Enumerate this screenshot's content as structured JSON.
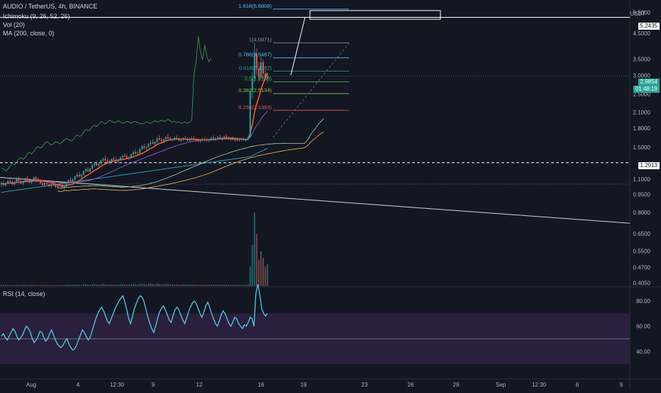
{
  "header": {
    "symbol_line": "AUDIO / TetherUS, 4h, BINANCE",
    "ichimoku_label": "Ichimoku (9, 26, 52, 26)",
    "vol_label": "Vol (20)",
    "ma_label": "MA (200, close, 0)",
    "currency": "USDT"
  },
  "price_axis": {
    "ticks": [
      "6",
      "5.5000",
      "4.5000",
      "3.5000",
      "3.0000",
      "2.5000",
      "2.1000",
      "1.8000",
      "1.5000",
      "1.1000",
      "0.9500",
      "0.8000",
      "0.6500",
      "0.5500",
      "0.4700",
      "0.4050"
    ],
    "target_price": "5.2435",
    "current_price": "2.9854",
    "countdown": "01:48:19",
    "support_price": "1.2913"
  },
  "rsi": {
    "label": "RSI (14, close)",
    "ticks": [
      "80.00",
      "60.00",
      "40.00"
    ],
    "upper_band": 70,
    "lower_band": 30,
    "midline": 50,
    "values": [
      52,
      54,
      51,
      49,
      52,
      55,
      58,
      56,
      52,
      49,
      51,
      53,
      57,
      60,
      58,
      55,
      50,
      47,
      49,
      52,
      56,
      55,
      51,
      48,
      50,
      54,
      57,
      53,
      49,
      46,
      44,
      43,
      45,
      48,
      50,
      46,
      43,
      41,
      42,
      45,
      49,
      53,
      57,
      55,
      52,
      49,
      51,
      56,
      61,
      66,
      70,
      73,
      75,
      72,
      68,
      64,
      62,
      66,
      70,
      74,
      77,
      80,
      82,
      84,
      79,
      73,
      66,
      62,
      68,
      74,
      78,
      82,
      84,
      83,
      79,
      73,
      67,
      62,
      58,
      55,
      60,
      66,
      71,
      74,
      76,
      73,
      69,
      65,
      63,
      68,
      73,
      75,
      73,
      69,
      65,
      62,
      66,
      71,
      75,
      78,
      80,
      78,
      74,
      70,
      67,
      71,
      76,
      79,
      75,
      70,
      66,
      62,
      60,
      64,
      69,
      72,
      70,
      66,
      62,
      60,
      63,
      67,
      66,
      62,
      60,
      58,
      61,
      60,
      63,
      67,
      66,
      60,
      86,
      93,
      85,
      74,
      70,
      68,
      70
    ]
  },
  "fib_levels": [
    {
      "label": "1.618(5.6808)",
      "color": "#4fc3f7"
    },
    {
      "label": "1(4.0971)",
      "color": "#9598a1"
    },
    {
      "label": "0.786(3.5487)",
      "color": "#4fc3f7"
    },
    {
      "label": "0.618(3.1182)",
      "color": "#26a69a"
    },
    {
      "label": "0.5(2.8158)",
      "color": "#4caf50"
    },
    {
      "label": "0.382(2.5134)",
      "color": "#8bc34a"
    },
    {
      "label": "0.236(2.1393)",
      "color": "#ef5350"
    }
  ],
  "time_axis": {
    "labels": [
      "Aug",
      "4",
      "12:30",
      "9",
      "12",
      "16",
      "19",
      "23",
      "26",
      "29",
      "Sep",
      "12:30",
      "6",
      "9"
    ]
  },
  "colors": {
    "background": "#131722",
    "bull": "#26a69a",
    "bear": "#ef5350",
    "rsi_line": "#4dd0e1",
    "rsi_band": "#2a1f3d",
    "ma200": "#26a0b8",
    "tenkan": "#ff5722",
    "kijun": "#7e57c2"
  },
  "chart_data": {
    "type": "candlestick",
    "ylog": true,
    "ylim": [
      0.39,
      6.2
    ],
    "candles_ohlc": [
      [
        1.05,
        1.08,
        1.02,
        1.06
      ],
      [
        1.06,
        1.09,
        1.03,
        1.04
      ],
      [
        1.04,
        1.07,
        1.02,
        1.06
      ],
      [
        1.06,
        1.1,
        1.05,
        1.08
      ],
      [
        1.08,
        1.11,
        1.06,
        1.07
      ],
      [
        1.07,
        1.09,
        1.04,
        1.05
      ],
      [
        1.05,
        1.08,
        1.03,
        1.07
      ],
      [
        1.07,
        1.12,
        1.06,
        1.1
      ],
      [
        1.1,
        1.13,
        1.07,
        1.08
      ],
      [
        1.08,
        1.1,
        1.05,
        1.06
      ],
      [
        1.06,
        1.09,
        1.04,
        1.08
      ],
      [
        1.08,
        1.12,
        1.07,
        1.11
      ],
      [
        1.11,
        1.14,
        1.08,
        1.09
      ],
      [
        1.09,
        1.11,
        1.06,
        1.07
      ],
      [
        1.07,
        1.1,
        1.05,
        1.09
      ],
      [
        1.09,
        1.13,
        1.08,
        1.12
      ],
      [
        1.12,
        1.14,
        1.09,
        1.1
      ],
      [
        1.1,
        1.12,
        1.07,
        1.08
      ],
      [
        1.08,
        1.1,
        1.05,
        1.06
      ],
      [
        1.06,
        1.08,
        1.03,
        1.04
      ],
      [
        1.04,
        1.07,
        1.02,
        1.06
      ],
      [
        1.06,
        1.09,
        1.04,
        1.05
      ],
      [
        1.05,
        1.07,
        1.02,
        1.03
      ],
      [
        1.03,
        1.06,
        1.01,
        1.05
      ],
      [
        1.05,
        1.08,
        1.03,
        1.04
      ],
      [
        1.04,
        1.06,
        1.01,
        1.02
      ],
      [
        1.02,
        1.05,
        1.0,
        1.04
      ],
      [
        1.04,
        1.07,
        1.02,
        1.03
      ],
      [
        1.03,
        1.05,
        1.0,
        1.01
      ],
      [
        1.01,
        1.04,
        0.99,
        1.03
      ],
      [
        1.03,
        1.07,
        1.02,
        1.06
      ],
      [
        1.06,
        1.1,
        1.05,
        1.09
      ],
      [
        1.09,
        1.12,
        1.06,
        1.07
      ],
      [
        1.07,
        1.11,
        1.06,
        1.1
      ],
      [
        1.1,
        1.14,
        1.08,
        1.13
      ],
      [
        1.13,
        1.17,
        1.11,
        1.15
      ],
      [
        1.15,
        1.18,
        1.12,
        1.13
      ],
      [
        1.13,
        1.16,
        1.11,
        1.15
      ],
      [
        1.15,
        1.2,
        1.14,
        1.19
      ],
      [
        1.19,
        1.23,
        1.17,
        1.21
      ],
      [
        1.21,
        1.24,
        1.18,
        1.19
      ],
      [
        1.19,
        1.23,
        1.18,
        1.22
      ],
      [
        1.22,
        1.27,
        1.21,
        1.26
      ],
      [
        1.26,
        1.3,
        1.24,
        1.28
      ],
      [
        1.28,
        1.31,
        1.25,
        1.26
      ],
      [
        1.26,
        1.29,
        1.24,
        1.28
      ],
      [
        1.28,
        1.33,
        1.27,
        1.32
      ],
      [
        1.32,
        1.36,
        1.3,
        1.34
      ],
      [
        1.34,
        1.38,
        1.31,
        1.32
      ],
      [
        1.32,
        1.35,
        1.29,
        1.3
      ],
      [
        1.3,
        1.33,
        1.27,
        1.31
      ],
      [
        1.31,
        1.35,
        1.3,
        1.34
      ],
      [
        1.34,
        1.37,
        1.31,
        1.33
      ],
      [
        1.33,
        1.36,
        1.3,
        1.31
      ],
      [
        1.31,
        1.34,
        1.28,
        1.33
      ],
      [
        1.33,
        1.37,
        1.32,
        1.36
      ],
      [
        1.36,
        1.4,
        1.34,
        1.38
      ],
      [
        1.38,
        1.42,
        1.36,
        1.37
      ],
      [
        1.37,
        1.4,
        1.34,
        1.35
      ],
      [
        1.35,
        1.38,
        1.32,
        1.36
      ],
      [
        1.36,
        1.41,
        1.35,
        1.4
      ],
      [
        1.4,
        1.45,
        1.38,
        1.43
      ],
      [
        1.43,
        1.47,
        1.4,
        1.41
      ],
      [
        1.41,
        1.44,
        1.38,
        1.42
      ],
      [
        1.42,
        1.48,
        1.41,
        1.47
      ],
      [
        1.47,
        1.53,
        1.45,
        1.51
      ],
      [
        1.51,
        1.55,
        1.47,
        1.49
      ],
      [
        1.49,
        1.52,
        1.45,
        1.5
      ],
      [
        1.5,
        1.56,
        1.49,
        1.55
      ],
      [
        1.55,
        1.6,
        1.52,
        1.57
      ],
      [
        1.57,
        1.62,
        1.54,
        1.55
      ],
      [
        1.55,
        1.59,
        1.52,
        1.58
      ],
      [
        1.58,
        1.65,
        1.56,
        1.63
      ],
      [
        1.63,
        1.68,
        1.6,
        1.61
      ],
      [
        1.61,
        1.64,
        1.57,
        1.59
      ],
      [
        1.59,
        1.63,
        1.56,
        1.62
      ],
      [
        1.62,
        1.67,
        1.6,
        1.65
      ],
      [
        1.65,
        1.7,
        1.62,
        1.63
      ],
      [
        1.63,
        1.66,
        1.6,
        1.61
      ],
      [
        1.61,
        1.64,
        1.58,
        1.62
      ],
      [
        1.62,
        1.66,
        1.6,
        1.64
      ],
      [
        1.64,
        1.68,
        1.61,
        1.62
      ],
      [
        1.62,
        1.65,
        1.59,
        1.6
      ],
      [
        1.6,
        1.63,
        1.57,
        1.61
      ],
      [
        1.61,
        1.65,
        1.59,
        1.63
      ],
      [
        1.63,
        1.67,
        1.61,
        1.62
      ],
      [
        1.62,
        1.65,
        1.59,
        1.6
      ],
      [
        1.6,
        1.64,
        1.58,
        1.62
      ],
      [
        1.62,
        1.66,
        1.6,
        1.63
      ],
      [
        1.63,
        1.67,
        1.61,
        1.61
      ],
      [
        1.61,
        1.64,
        1.58,
        1.6
      ],
      [
        1.6,
        1.63,
        1.57,
        1.59
      ],
      [
        1.59,
        1.62,
        1.56,
        1.6
      ],
      [
        1.6,
        1.64,
        1.58,
        1.62
      ],
      [
        1.62,
        1.65,
        1.59,
        1.61
      ],
      [
        1.61,
        1.64,
        1.58,
        1.6
      ],
      [
        1.6,
        1.63,
        1.57,
        1.62
      ],
      [
        1.62,
        1.66,
        1.6,
        1.64
      ],
      [
        1.64,
        1.68,
        1.61,
        1.62
      ],
      [
        1.62,
        1.65,
        1.59,
        1.63
      ],
      [
        1.63,
        1.67,
        1.61,
        1.65
      ],
      [
        1.65,
        1.69,
        1.62,
        1.63
      ],
      [
        1.63,
        1.66,
        1.6,
        1.64
      ],
      [
        1.64,
        1.68,
        1.62,
        1.66
      ],
      [
        1.66,
        1.7,
        1.63,
        1.64
      ],
      [
        1.64,
        1.67,
        1.61,
        1.62
      ],
      [
        1.62,
        1.65,
        1.59,
        1.63
      ],
      [
        1.63,
        1.66,
        1.6,
        1.61
      ],
      [
        1.61,
        1.64,
        1.58,
        1.62
      ],
      [
        1.62,
        1.65,
        1.59,
        1.6
      ],
      [
        1.6,
        1.63,
        1.58,
        1.61
      ],
      [
        1.61,
        1.64,
        1.59,
        1.62
      ],
      [
        1.62,
        1.65,
        1.6,
        1.6
      ],
      [
        1.6,
        1.63,
        1.58,
        1.62
      ],
      [
        1.62,
        1.66,
        1.6,
        1.65
      ],
      [
        1.65,
        2.6,
        1.64,
        2.55
      ],
      [
        2.55,
        3.1,
        2.4,
        2.9
      ],
      [
        2.9,
        4.1,
        2.8,
        3.7
      ],
      [
        3.7,
        3.9,
        3.0,
        3.2
      ],
      [
        3.2,
        3.4,
        2.8,
        2.95
      ],
      [
        2.95,
        3.6,
        2.9,
        3.4
      ],
      [
        3.4,
        3.5,
        2.9,
        3.05
      ],
      [
        3.05,
        3.15,
        2.85,
        2.9
      ],
      [
        2.9,
        3.05,
        2.8,
        2.99
      ]
    ],
    "volume": [
      1.2,
      1.0,
      0.9,
      1.1,
      1.0,
      0.8,
      0.9,
      1.2,
      1.0,
      0.9,
      1.0,
      1.1,
      0.9,
      0.8,
      1.0,
      1.1,
      0.9,
      0.8,
      0.9,
      1.0,
      0.8,
      0.9,
      1.0,
      0.8,
      0.9,
      0.8,
      1.0,
      0.9,
      0.8,
      1.0,
      1.1,
      1.3,
      1.1,
      1.2,
      1.4,
      1.5,
      1.2,
      1.1,
      1.6,
      1.7,
      1.4,
      1.3,
      1.7,
      1.8,
      1.4,
      1.3,
      1.6,
      1.9,
      1.5,
      1.3,
      1.2,
      1.5,
      1.3,
      1.2,
      1.3,
      1.6,
      1.8,
      1.5,
      1.3,
      1.4,
      1.7,
      2.0,
      1.6,
      1.4,
      1.9,
      2.3,
      1.8,
      1.5,
      2.0,
      2.4,
      1.9,
      1.6,
      2.3,
      2.0,
      1.5,
      1.7,
      2.1,
      1.8,
      1.5,
      1.4,
      1.6,
      1.5,
      1.3,
      1.4,
      1.5,
      1.4,
      1.3,
      1.4,
      1.5,
      1.3,
      1.2,
      1.1,
      1.2,
      1.3,
      1.2,
      1.1,
      1.2,
      1.3,
      1.2,
      1.3,
      1.4,
      1.2,
      1.3,
      1.4,
      1.2,
      1.1,
      1.2,
      1.1,
      1.2,
      1.1,
      1.0,
      1.1,
      1.0,
      1.2,
      1.4,
      18.0,
      38.0,
      68.0,
      48.0,
      24.0,
      32.0,
      26.0,
      18.0,
      20.0
    ]
  }
}
